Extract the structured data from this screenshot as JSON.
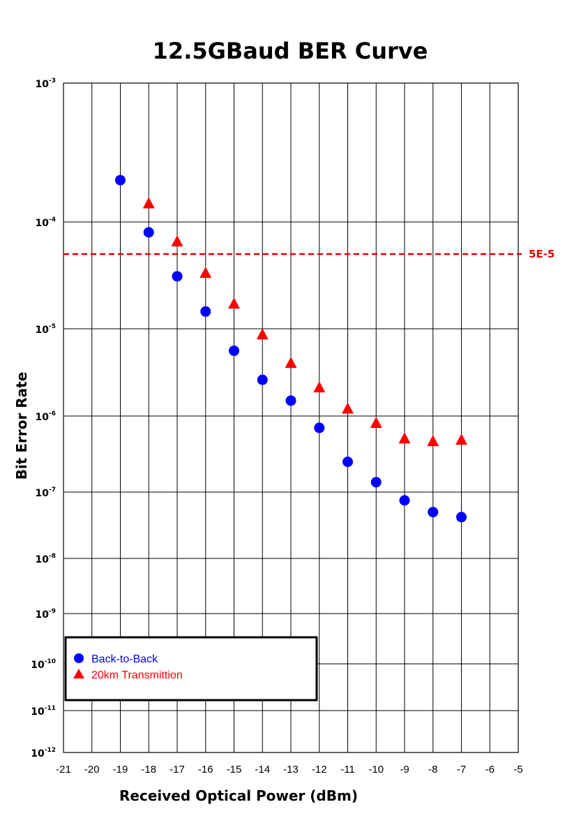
{
  "chart_data": {
    "type": "scatter",
    "title": "12.5GBaud BER Curve",
    "xlabel": "Received Optical Power (dBm)",
    "ylabel": "Bit Error Rate",
    "xlim": [
      -21,
      -5
    ],
    "ylim": [
      1e-12,
      0.001
    ],
    "yscale": "log",
    "x_ticks": [
      "-21",
      "-20",
      "-19",
      "-18",
      "-17",
      "-16",
      "-15",
      "-14",
      "-13",
      "-12",
      "-11",
      "-10",
      "-9",
      "-8",
      "-7",
      "-6",
      "-5"
    ],
    "y_ticks": [
      {
        "base": "10",
        "exp": "-3"
      },
      {
        "base": "10",
        "exp": "-4"
      },
      {
        "base": "10",
        "exp": "-5"
      },
      {
        "base": "10",
        "exp": "-6"
      },
      {
        "base": "10",
        "exp": "-7"
      },
      {
        "base": "10",
        "exp": "-8"
      },
      {
        "base": "10",
        "exp": "-9"
      },
      {
        "base": "10",
        "exp": "-10"
      },
      {
        "base": "10",
        "exp": "-11"
      },
      {
        "base": "10",
        "exp": "-12"
      }
    ],
    "grid": true,
    "legend_position": "bottom-left",
    "series": [
      {
        "name": "Back-to-Back",
        "marker": "circle",
        "color": "#0000ff",
        "points": [
          [
            -19,
            0.0002
          ],
          [
            -18,
            8e-05
          ],
          [
            -17,
            3.1e-05
          ],
          [
            -16,
            1.45e-05
          ],
          [
            -15,
            5.6e-06
          ],
          [
            -14,
            2.6e-06
          ],
          [
            -13,
            1.5e-06
          ],
          [
            -12,
            7e-07
          ],
          [
            -11,
            2.5e-07
          ],
          [
            -10,
            1.35e-07
          ],
          [
            -9,
            7.5e-08
          ],
          [
            -8,
            5e-08
          ],
          [
            -7,
            4.2e-08
          ]
        ]
      },
      {
        "name": "20km Transmittion",
        "marker": "triangle",
        "color": "#ff0000",
        "points": [
          [
            -18,
            0.000135
          ],
          [
            -17,
            6.5e-05
          ],
          [
            -16,
            3.3e-05
          ],
          [
            -15,
            1.7e-05
          ],
          [
            -14,
            8.5e-06
          ],
          [
            -13,
            4e-06
          ],
          [
            -12,
            2.1e-06
          ],
          [
            -11,
            1.2e-06
          ],
          [
            -10,
            8e-07
          ],
          [
            -9,
            5e-07
          ],
          [
            -8,
            4.6e-07
          ],
          [
            -7,
            4.8e-07
          ]
        ]
      }
    ],
    "reference_line": {
      "value": 5e-05,
      "label": "5E-5",
      "color": "#e00000",
      "style": "dashed"
    }
  }
}
